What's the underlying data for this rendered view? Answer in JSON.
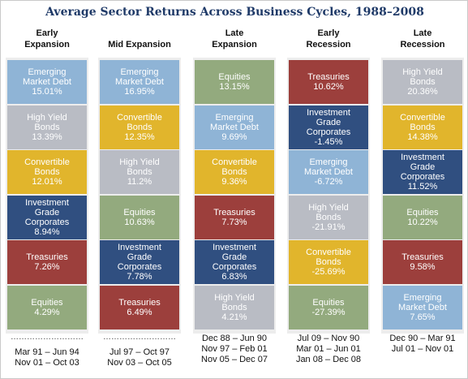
{
  "title": "Average Sector Returns Across Business Cycles, 1988–2008",
  "colors": {
    "Emerging Market Debt": "#8fb4d6",
    "High Yield Bonds": "#b9bcc4",
    "Convertible Bonds": "#e1b52c",
    "Investment Grade Corporates": "#304f80",
    "Treasuries": "#9c3f3c",
    "Equities": "#93aa7e"
  },
  "chart_data": {
    "type": "table",
    "title": "Average Sector Returns Across Business Cycles, 1988–2008",
    "units": "%",
    "columns": [
      {
        "header": [
          "Early",
          "Expansion"
        ],
        "tiles": [
          {
            "sector": "Emerging Market Debt",
            "lines": [
              "Emerging",
              "Market Debt"
            ],
            "value": "15.01%"
          },
          {
            "sector": "High Yield Bonds",
            "lines": [
              "High Yield",
              "Bonds"
            ],
            "value": "13.39%"
          },
          {
            "sector": "Convertible Bonds",
            "lines": [
              "Convertible",
              "Bonds"
            ],
            "value": "12.01%"
          },
          {
            "sector": "Investment Grade Corporates",
            "lines": [
              "Investment",
              "Grade",
              "Corporates"
            ],
            "value": "8.94%"
          },
          {
            "sector": "Treasuries",
            "lines": [
              "Treasuries"
            ],
            "value": "7.26%"
          },
          {
            "sector": "Equities",
            "lines": [
              "Equities"
            ],
            "value": "4.29%"
          }
        ],
        "periods": [
          "Mar 91 – Jun 94",
          "Nov 01 – Oct 03"
        ],
        "dotted": true
      },
      {
        "header": [
          "Mid Expansion"
        ],
        "tiles": [
          {
            "sector": "Emerging Market Debt",
            "lines": [
              "Emerging",
              "Market Debt"
            ],
            "value": "16.95%"
          },
          {
            "sector": "Convertible Bonds",
            "lines": [
              "Convertible",
              "Bonds"
            ],
            "value": "12.35%"
          },
          {
            "sector": "High Yield Bonds",
            "lines": [
              "High Yield",
              "Bonds"
            ],
            "value": "11.2%"
          },
          {
            "sector": "Equities",
            "lines": [
              "Equities"
            ],
            "value": "10.63%"
          },
          {
            "sector": "Investment Grade Corporates",
            "lines": [
              "Investment",
              "Grade",
              "Corporates"
            ],
            "value": "7.78%"
          },
          {
            "sector": "Treasuries",
            "lines": [
              "Treasuries"
            ],
            "value": "6.49%"
          }
        ],
        "periods": [
          "Jul 97 – Oct 97",
          "Nov 03 – Oct 05"
        ],
        "dotted": true
      },
      {
        "header": [
          "Late",
          "Expansion"
        ],
        "tiles": [
          {
            "sector": "Equities",
            "lines": [
              "Equities"
            ],
            "value": "13.15%"
          },
          {
            "sector": "Emerging Market Debt",
            "lines": [
              "Emerging",
              "Market Debt"
            ],
            "value": "9.69%"
          },
          {
            "sector": "Convertible Bonds",
            "lines": [
              "Convertible",
              "Bonds"
            ],
            "value": "9.36%"
          },
          {
            "sector": "Treasuries",
            "lines": [
              "Treasuries"
            ],
            "value": "7.73%"
          },
          {
            "sector": "Investment Grade Corporates",
            "lines": [
              "Investment",
              "Grade",
              "Corporates"
            ],
            "value": "6.83%"
          },
          {
            "sector": "High Yield Bonds",
            "lines": [
              "High Yield",
              "Bonds"
            ],
            "value": "4.21%"
          }
        ],
        "periods": [
          "Dec 88 – Jun 90",
          "Nov 97 – Feb 01",
          "Nov 05 – Dec 07"
        ],
        "dotted": false
      },
      {
        "header": [
          "Early",
          "Recession"
        ],
        "tiles": [
          {
            "sector": "Treasuries",
            "lines": [
              "Treasuries"
            ],
            "value": "10.62%"
          },
          {
            "sector": "Investment Grade Corporates",
            "lines": [
              "Investment",
              "Grade",
              "Corporates"
            ],
            "value": "-1.45%"
          },
          {
            "sector": "Emerging Market Debt",
            "lines": [
              "Emerging",
              "Market Debt"
            ],
            "value": "-6.72%"
          },
          {
            "sector": "High Yield Bonds",
            "lines": [
              "High Yield",
              "Bonds"
            ],
            "value": "-21.91%"
          },
          {
            "sector": "Convertible Bonds",
            "lines": [
              "Convertible",
              "Bonds"
            ],
            "value": "-25.69%"
          },
          {
            "sector": "Equities",
            "lines": [
              "Equities"
            ],
            "value": "-27.39%"
          }
        ],
        "periods": [
          "Jul 09 – Nov 90",
          "Mar 01 – Jun 01",
          "Jan 08 – Dec 08"
        ],
        "dotted": false
      },
      {
        "header": [
          "Late",
          "Recession"
        ],
        "tiles": [
          {
            "sector": "High Yield Bonds",
            "lines": [
              "High Yield",
              "Bonds"
            ],
            "value": "20.36%"
          },
          {
            "sector": "Convertible Bonds",
            "lines": [
              "Convertible",
              "Bonds"
            ],
            "value": "14.38%"
          },
          {
            "sector": "Investment Grade Corporates",
            "lines": [
              "Investment",
              "Grade",
              "Corporates"
            ],
            "value": "11.52%"
          },
          {
            "sector": "Equities",
            "lines": [
              "Equities"
            ],
            "value": "10.22%"
          },
          {
            "sector": "Treasuries",
            "lines": [
              "Treasuries"
            ],
            "value": "9.58%"
          },
          {
            "sector": "Emerging Market Debt",
            "lines": [
              "Emerging",
              "Market Debt"
            ],
            "value": "7.65%"
          }
        ],
        "periods": [
          "Dec 90 – Mar 91",
          "Jul 01 – Nov 01"
        ],
        "dotted": false
      }
    ]
  }
}
